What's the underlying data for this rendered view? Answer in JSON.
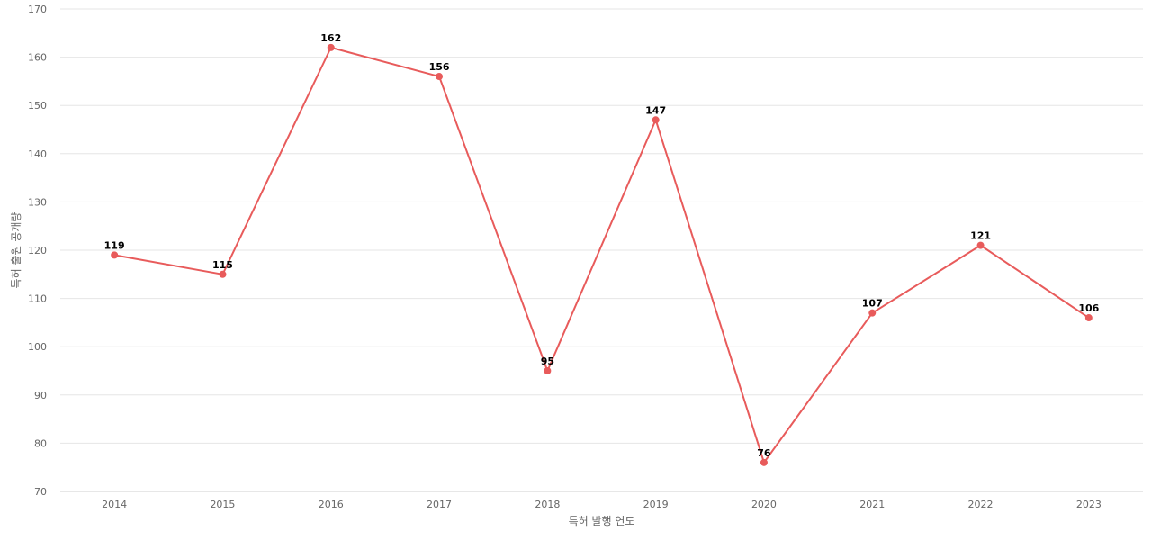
{
  "chart_data": {
    "type": "line",
    "title": "",
    "xlabel": "특허 발행 연도",
    "ylabel": "특허 출원 공개량",
    "categories": [
      "2014",
      "2015",
      "2016",
      "2017",
      "2018",
      "2019",
      "2020",
      "2021",
      "2022",
      "2023"
    ],
    "series": [
      {
        "values": [
          119,
          115,
          162,
          156,
          95,
          147,
          76,
          107,
          121,
          106
        ],
        "color": "#e85b5b"
      }
    ],
    "ylim": [
      70,
      170
    ],
    "yticks": [
      70,
      80,
      90,
      100,
      110,
      120,
      130,
      140,
      150,
      160,
      170
    ],
    "grid": true,
    "legend": "none",
    "data_labels": true
  }
}
